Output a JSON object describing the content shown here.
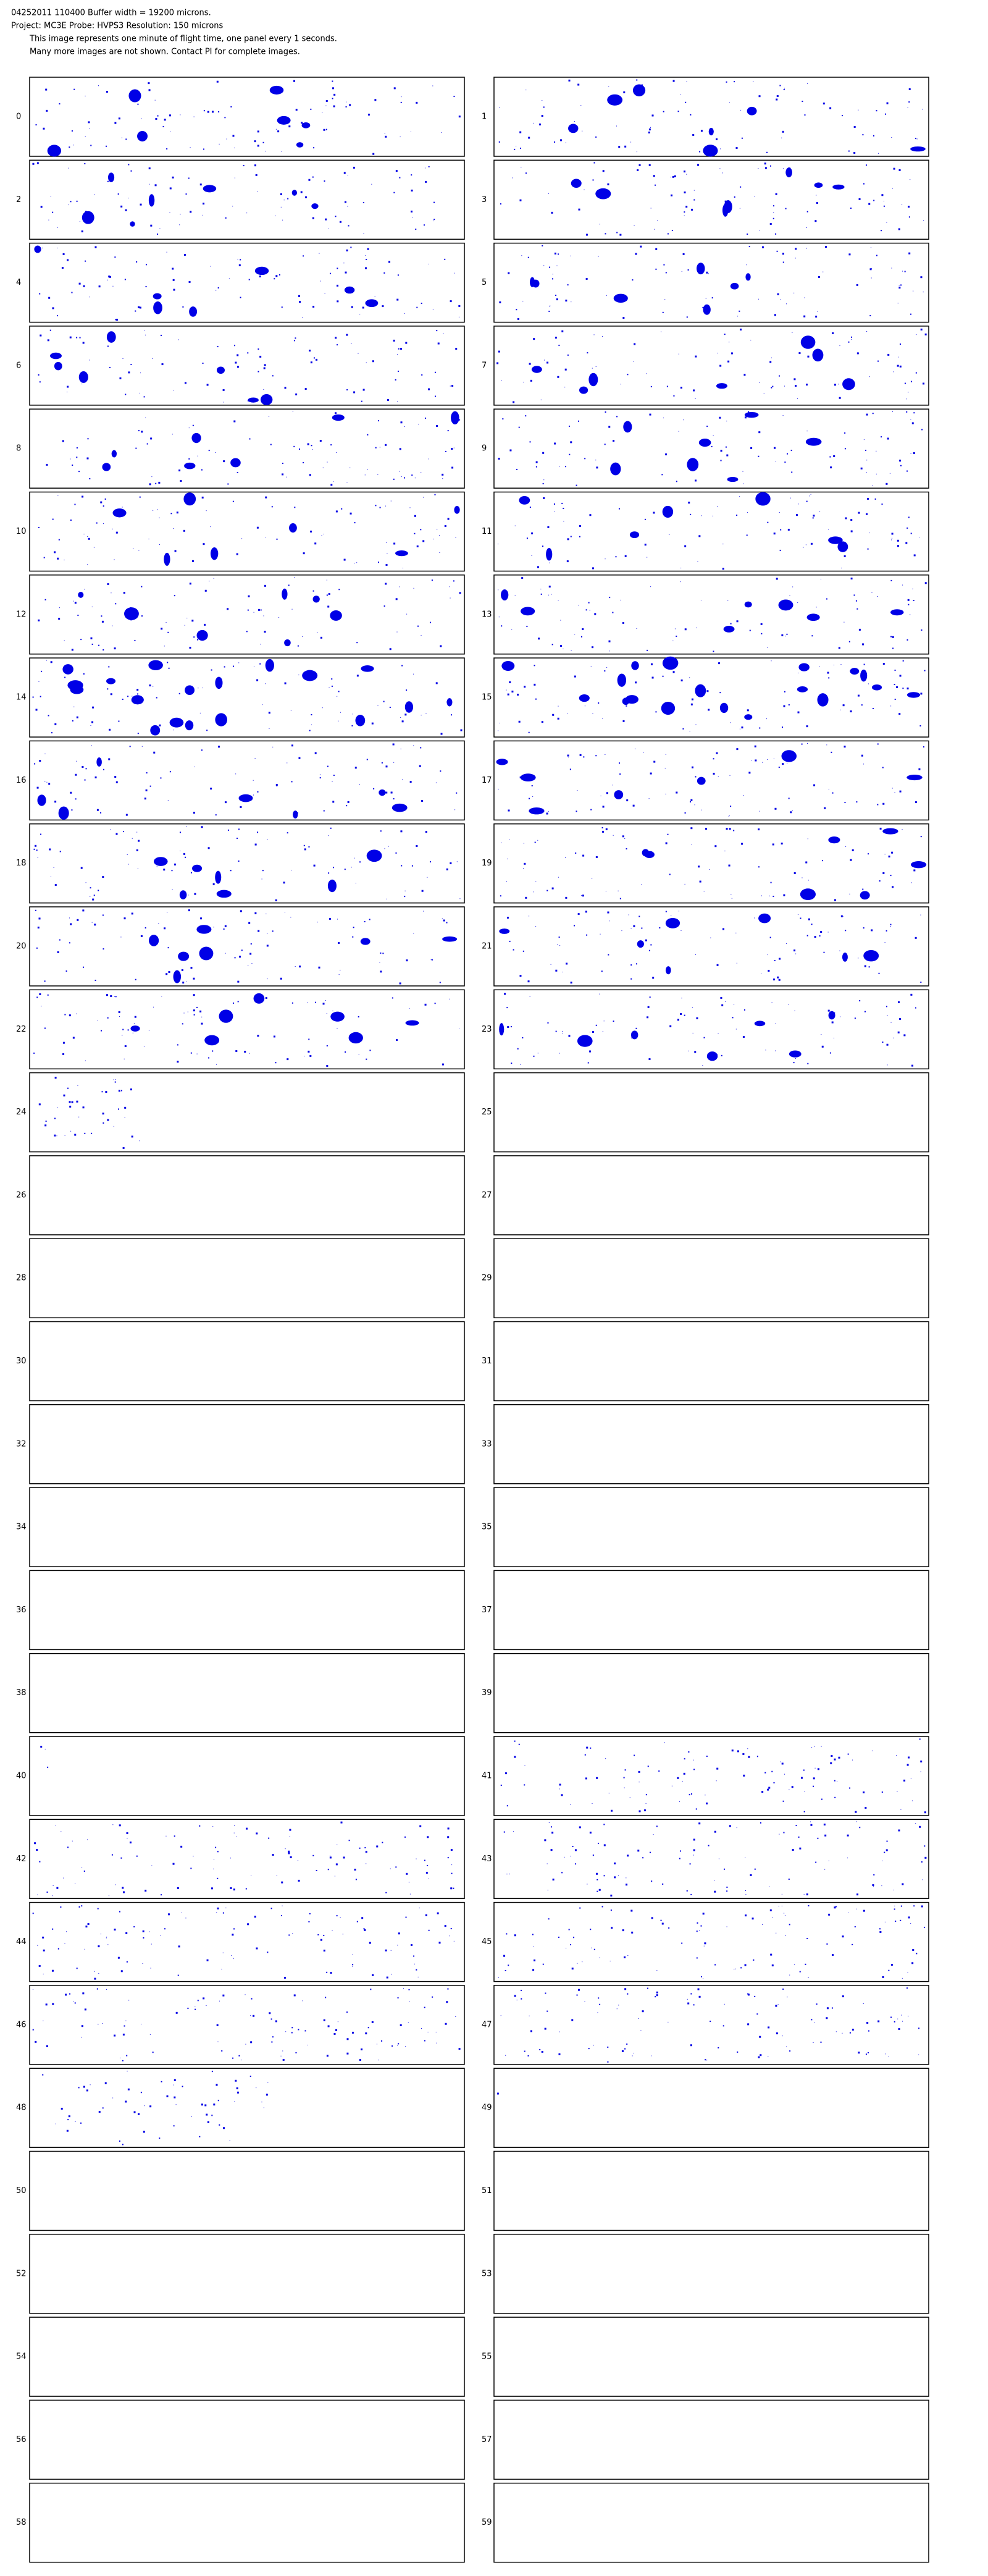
{
  "header": {
    "lines": [
      "04252011 110400  Buffer width = 19200 microns.",
      "Project: MC3E  Probe: HVPS3   Resolution: 150 microns",
      "This image represents one minute of flight time, one panel every 1 seconds.",
      "Many more images are not shown.  Contact PI for complete images."
    ]
  },
  "panels": {
    "labels": [
      "0",
      "1",
      "2",
      "3",
      "4",
      "5",
      "6",
      "7",
      "8",
      "9",
      "10",
      "11",
      "12",
      "13",
      "14",
      "15",
      "16",
      "17",
      "18",
      "19",
      "20",
      "21",
      "22",
      "23",
      "24",
      "25",
      "26",
      "27",
      "28",
      "29",
      "30",
      "31",
      "32",
      "33",
      "34",
      "35",
      "36",
      "37",
      "38",
      "39",
      "40",
      "41",
      "42",
      "43",
      "44",
      "45",
      "46",
      "47",
      "48",
      "49",
      "50",
      "51",
      "52",
      "53",
      "54",
      "55",
      "56",
      "57",
      "58",
      "59"
    ]
  }
}
